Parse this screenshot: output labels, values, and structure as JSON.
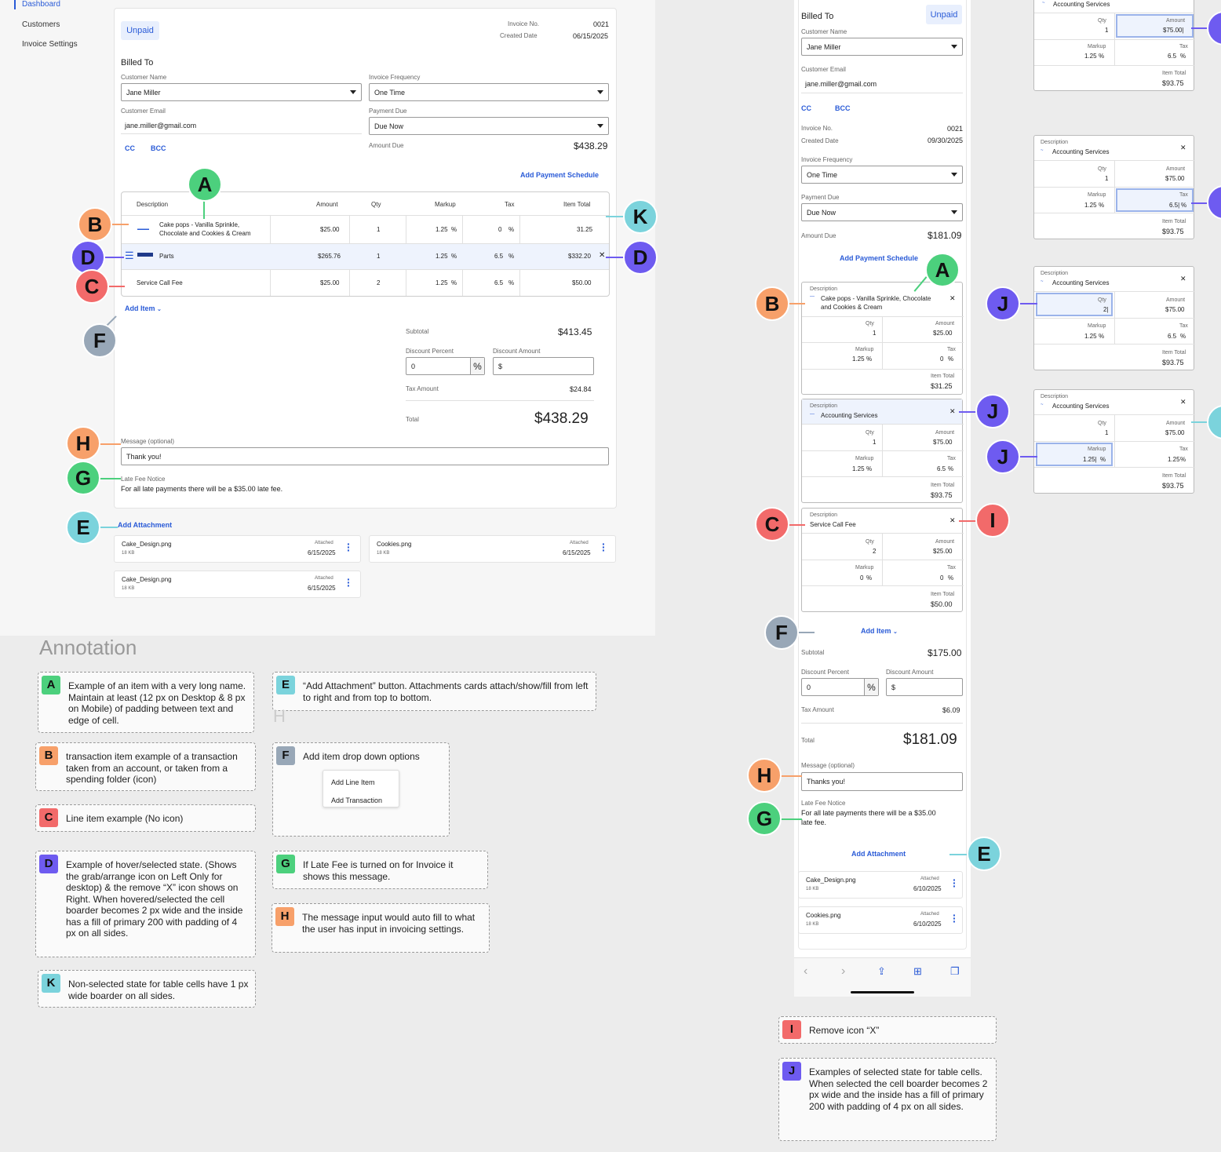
{
  "nav": {
    "items": [
      "Dashboard",
      "Customers",
      "Invoice Settings"
    ]
  },
  "desktop": {
    "status": "Unpaid",
    "invoice_no_label": "Invoice No.",
    "invoice_no": "0021",
    "created_label": "Created Date",
    "created": "06/15/2025",
    "billed_to": "Billed To",
    "customer_name_label": "Customer Name",
    "customer_name": "Jane Miller",
    "frequency_label": "Invoice Frequency",
    "frequency": "One Time",
    "email_label": "Customer Email",
    "email": "jane.miller@gmail.com",
    "payment_due_label": "Payment Due",
    "payment_due": "Due Now",
    "cc": "CC",
    "bcc": "BCC",
    "amount_due_label": "Amount Due",
    "amount_due": "$438.29",
    "add_schedule": "Add Payment Schedule",
    "table": {
      "headers": [
        "Description",
        "Amount",
        "Qty",
        "Markup",
        "Tax",
        "Item Total"
      ],
      "rows": [
        {
          "desc1": "Cake pops - Vanilla Sprinkle,",
          "desc2": "Chocolate and Cookies & Cream",
          "amount": "$25.00",
          "qty": "1",
          "markup": "1.25",
          "tax": "0",
          "total": "31.25"
        },
        {
          "desc1": "Parts",
          "desc2": "",
          "amount": "$265.76",
          "qty": "1",
          "markup": "1.25",
          "tax": "6.5",
          "total": "$332.20"
        },
        {
          "desc1": "Service Call Fee",
          "desc2": "",
          "amount": "$25.00",
          "qty": "2",
          "markup": "1.25",
          "tax": "6.5",
          "total": "$50.00"
        }
      ],
      "pct": "%"
    },
    "add_item": "Add Item",
    "subtotal_label": "Subtotal",
    "subtotal": "$413.45",
    "discount_pct_label": "Discount Percent",
    "discount_pct": "0",
    "discount_amt_label": "Discount Amount",
    "discount_amt": "$",
    "tax_label": "Tax Amount",
    "tax": "$24.84",
    "total_label": "Total",
    "total": "$438.29",
    "message_label": "Message (optional)",
    "message": "Thank you!",
    "late_label": "Late Fee Notice",
    "late_text": "For all late payments there will be a $35.00 late fee.",
    "add_attachment": "Add Attachment",
    "attachments": [
      {
        "name": "Cake_Design.png",
        "size": "18 KB",
        "label": "Attached",
        "date": "6/15/2025"
      },
      {
        "name": "Cookies.png",
        "size": "18 KB",
        "label": "Attached",
        "date": "6/15/2025"
      },
      {
        "name": "Cake_Design.png",
        "size": "18 KB",
        "label": "Attached",
        "date": "6/15/2025"
      }
    ]
  },
  "annotation": {
    "title": "Annotation",
    "stray_h": "H",
    "notes": {
      "A": "Example of an item with a very long name. Maintain at least (12 px on Desktop & 8 px on Mobile) of padding between text and edge of cell.",
      "B": "transaction item example of a transaction taken from an account, or taken from a spending folder (icon)",
      "C": "Line item example (No icon)",
      "D": "Example of hover/selected state. (Shows the grab/arrange icon on Left Only for desktop) & the remove “X” icon shows on Right. When hovered/selected the cell boarder becomes 2 px wide and the inside has a fill of primary 200 with padding of 4 px on all sides.",
      "K": "Non-selected state for table cells have 1 px wide boarder on all sides.",
      "E": "“Add Attachment” button. Attachments cards attach/show/fill from left to right and from top to bottom.",
      "F": "Add item drop down options",
      "F_opt1": "Add Line Item",
      "F_opt2": "Add Transaction",
      "G": "If Late Fee is turned on for Invoice it shows this message.",
      "H": "The message input would auto fill to what the user has input in invoicing settings.",
      "I": "Remove icon “X”",
      "J": "Examples of selected state for table cells. When selected the cell boarder becomes 2 px wide and the inside has a fill of primary 200 with padding of 4 px on all sides."
    }
  },
  "mobile": {
    "billed_to": "Billed To",
    "status": "Unpaid",
    "customer_name_label": "Customer Name",
    "customer_name": "Jane Miller",
    "email_label": "Customer Email",
    "email": "jane.miller@gmail.com",
    "cc": "CC",
    "bcc": "BCC",
    "invoice_no_label": "Invoice No.",
    "invoice_no": "0021",
    "created_label": "Created Date",
    "created": "09/30/2025",
    "frequency_label": "Invoice Frequency",
    "frequency": "One Time",
    "payment_due_label": "Payment Due",
    "payment_due": "Due Now",
    "amount_due_label": "Amount Due",
    "amount_due": "$181.09",
    "add_schedule": "Add Payment Schedule",
    "labels": {
      "description": "Description",
      "qty": "Qty",
      "amount": "Amount",
      "markup": "Markup",
      "tax": "Tax",
      "item_total": "Item Total",
      "pct": "%"
    },
    "items": [
      {
        "desc1": "Cake pops - Vanilla Sprinkle, Chocolate",
        "desc2": "and Cookies & Cream",
        "qty": "1",
        "amount": "$25.00",
        "markup": "1.25",
        "tax": "0",
        "total": "$31.25"
      },
      {
        "desc1": "Accounting Services",
        "desc2": "",
        "qty": "1",
        "amount": "$75.00",
        "markup": "1.25",
        "tax": "6.5",
        "total": "$93.75"
      },
      {
        "desc1": "Service Call Fee",
        "desc2": "",
        "qty": "2",
        "amount": "$25.00",
        "markup": "0",
        "tax": "0",
        "total": "$50.00"
      }
    ],
    "add_item": "Add Item",
    "subtotal_label": "Subtotal",
    "subtotal": "$175.00",
    "discount_pct_label": "Discount Percent",
    "discount_pct": "0",
    "discount_amt_label": "Discount Amount",
    "discount_amt": "$",
    "tax_label": "Tax Amount",
    "tax": "$6.09",
    "total_label": "Total",
    "total": "$181.09",
    "message_label": "Message (optional)",
    "message": "Thanks you!",
    "late_label": "Late Fee Notice",
    "late_text1": "For all late payments there will be a $35.00",
    "late_text2": "late fee.",
    "add_attachment": "Add Attachment",
    "attachments": [
      {
        "name": "Cake_Design.png",
        "size": "18 KB",
        "label": "Attached",
        "date": "6/10/2025"
      },
      {
        "name": "Cookies.png",
        "size": "18 KB",
        "label": "Attached",
        "date": "6/10/2025"
      }
    ]
  },
  "side_cards": [
    {
      "desc": "Accounting Services",
      "qty": "1",
      "amount": "$75.00|",
      "markup": "1.25",
      "tax": "6.5",
      "total": "$93.75"
    },
    {
      "desc": "Accounting Services",
      "qty": "1",
      "amount": "$75.00",
      "markup": "1.25",
      "tax": "6.5|",
      "total": "$93.75"
    },
    {
      "desc": "Accounting Services",
      "qty": "2|",
      "amount": "$75.00",
      "markup": "1.25",
      "tax": "6.5",
      "total": "$93.75"
    },
    {
      "desc": "Accounting Services",
      "qty": "1",
      "amount": "$75.00",
      "markup": "1.25|",
      "tax": "1.25",
      "total": "$93.75"
    }
  ],
  "colors": {
    "primary": "#2a5bd7",
    "primary_200": "#eef3fd"
  }
}
